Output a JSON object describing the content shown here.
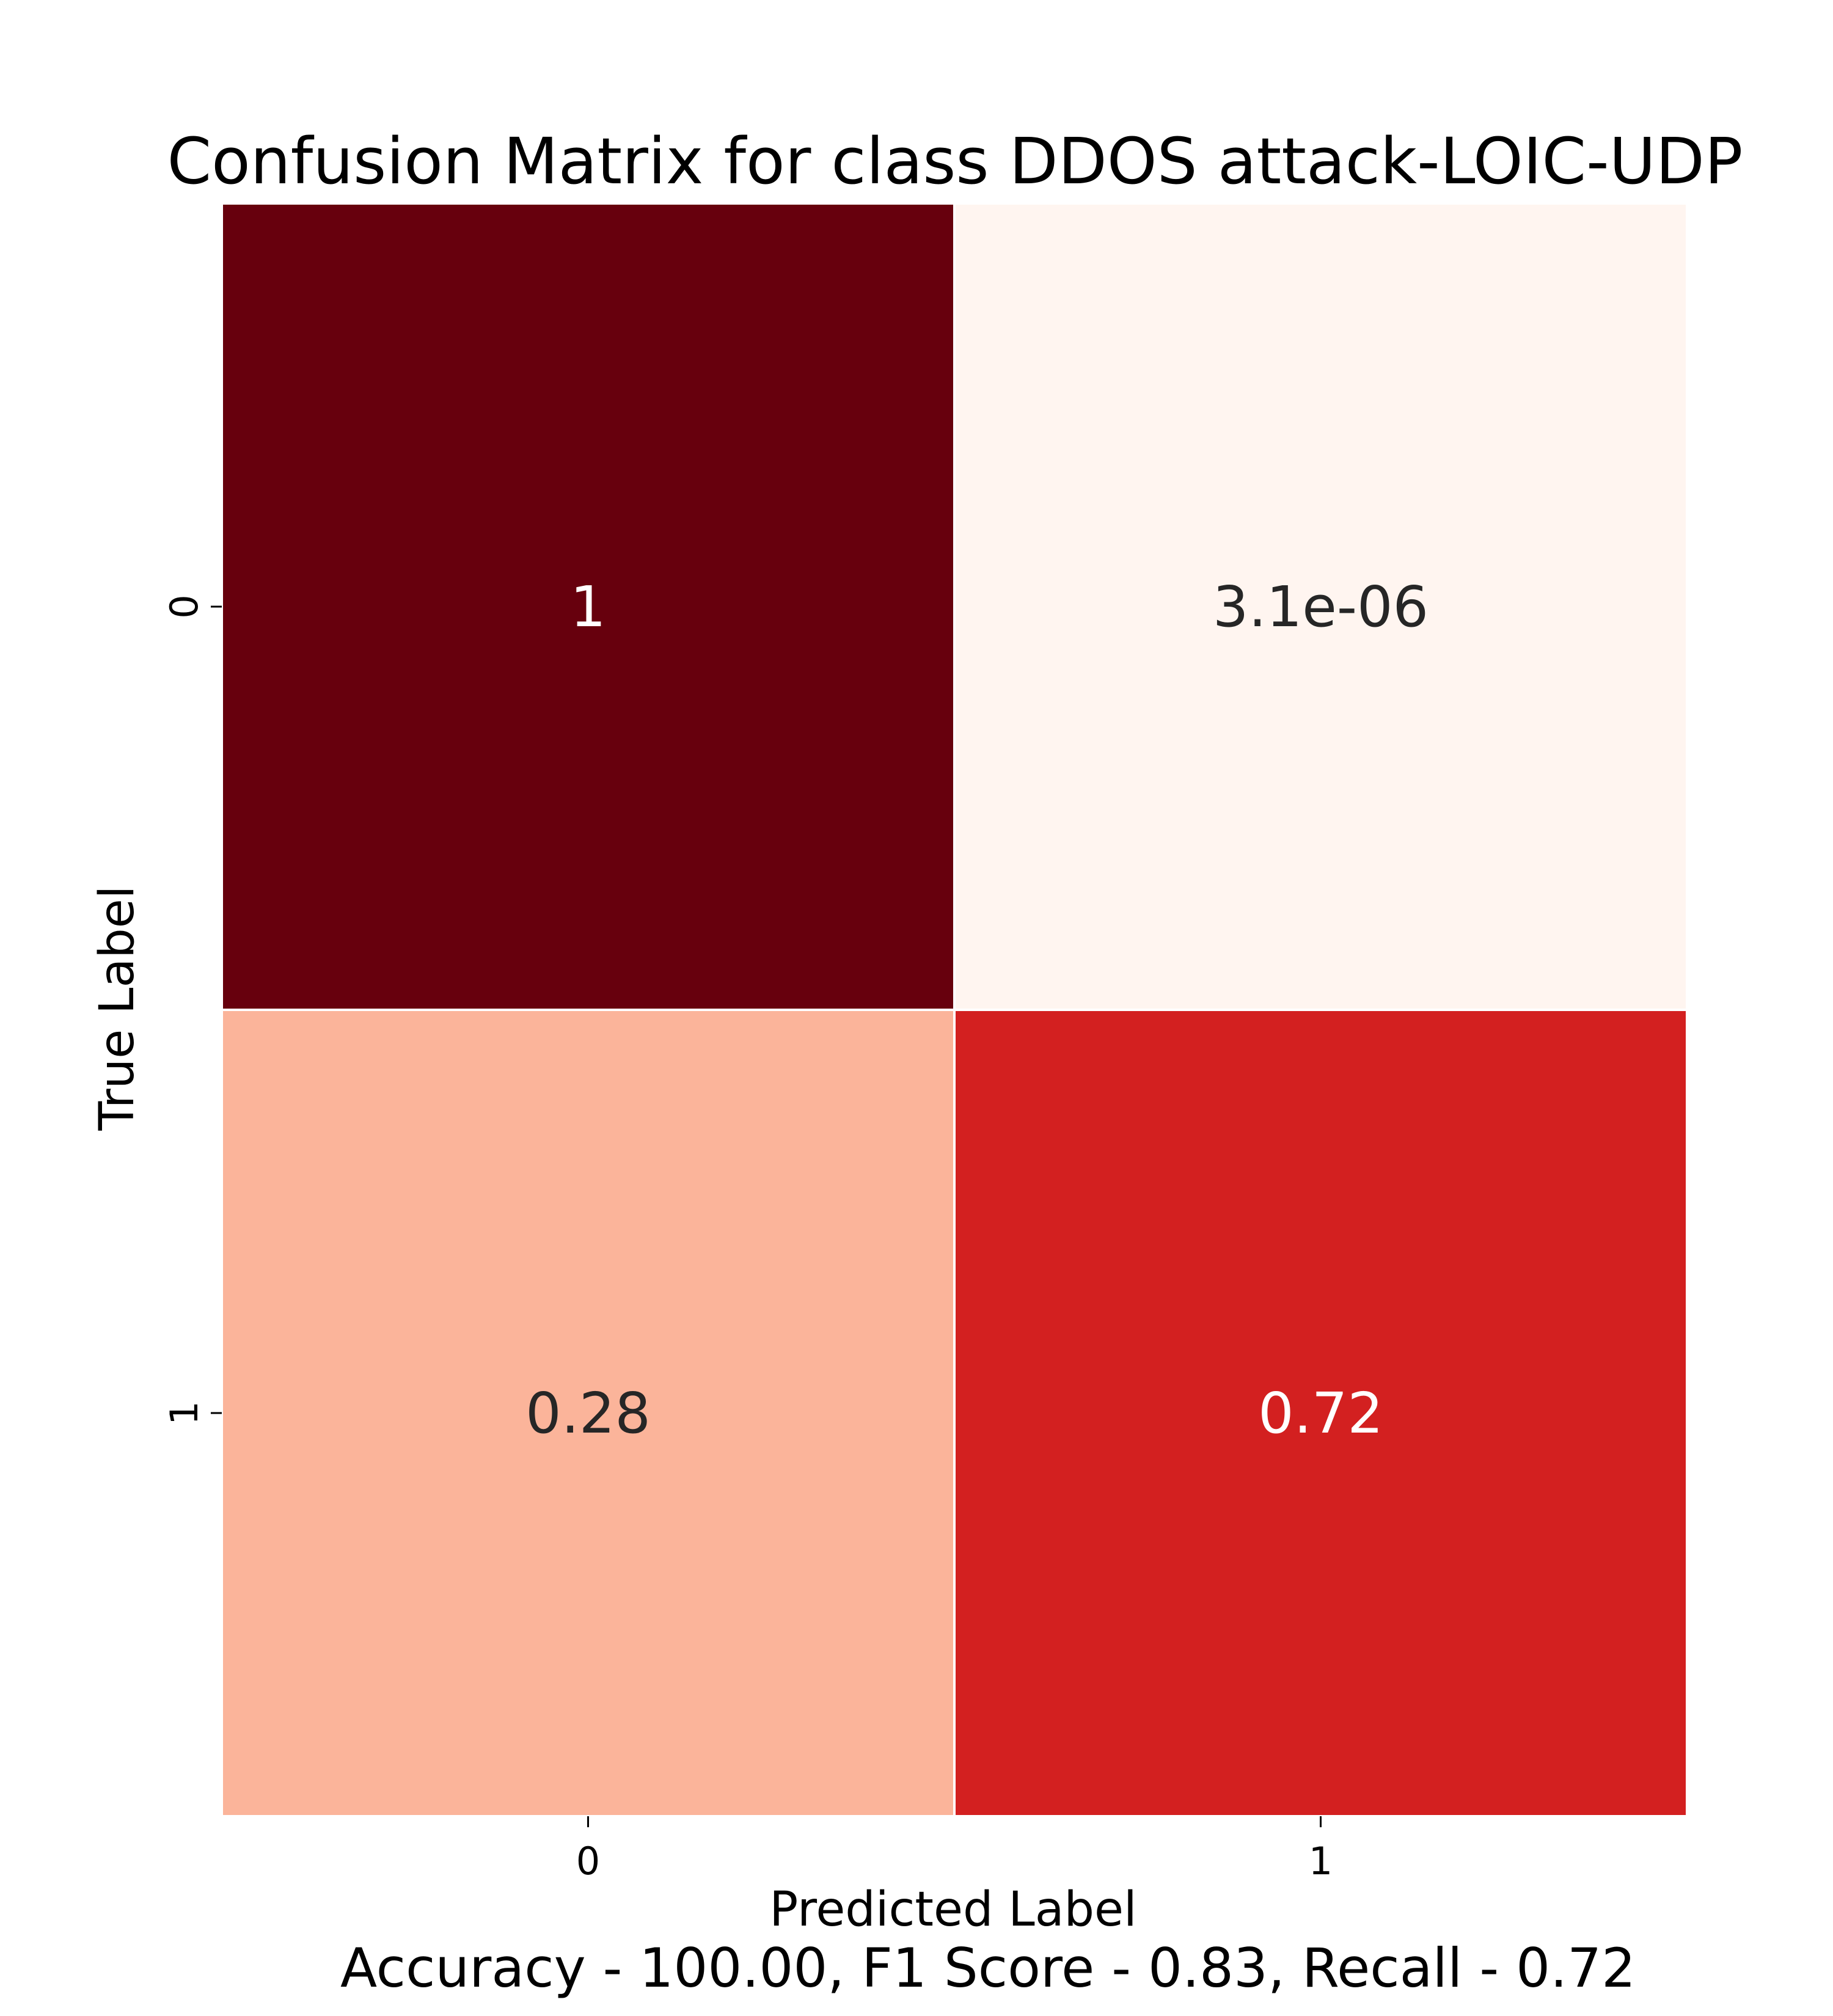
{
  "chart_data": {
    "type": "heatmap",
    "title": "Confusion Matrix for class DDOS attack-LOIC-UDP",
    "xlabel": "Predicted Label",
    "ylabel": "True Label",
    "x_categories": [
      "0",
      "1"
    ],
    "y_categories": [
      "0",
      "1"
    ],
    "values": [
      [
        1,
        3.1e-06
      ],
      [
        0.28,
        0.72
      ]
    ],
    "value_labels": [
      [
        "1",
        "3.1e-06"
      ],
      [
        "0.28",
        "0.72"
      ]
    ],
    "cell_colors": [
      [
        "#67000d",
        "#fff5f0"
      ],
      [
        "#fbb49a",
        "#d32020"
      ]
    ],
    "label_colors": [
      [
        "#ffffff",
        "#262626"
      ],
      [
        "#262626",
        "#ffffff"
      ]
    ],
    "colormap": "Reds",
    "footer": "Accuracy - 100.00, F1 Score - 0.83, Recall - 0.72"
  }
}
